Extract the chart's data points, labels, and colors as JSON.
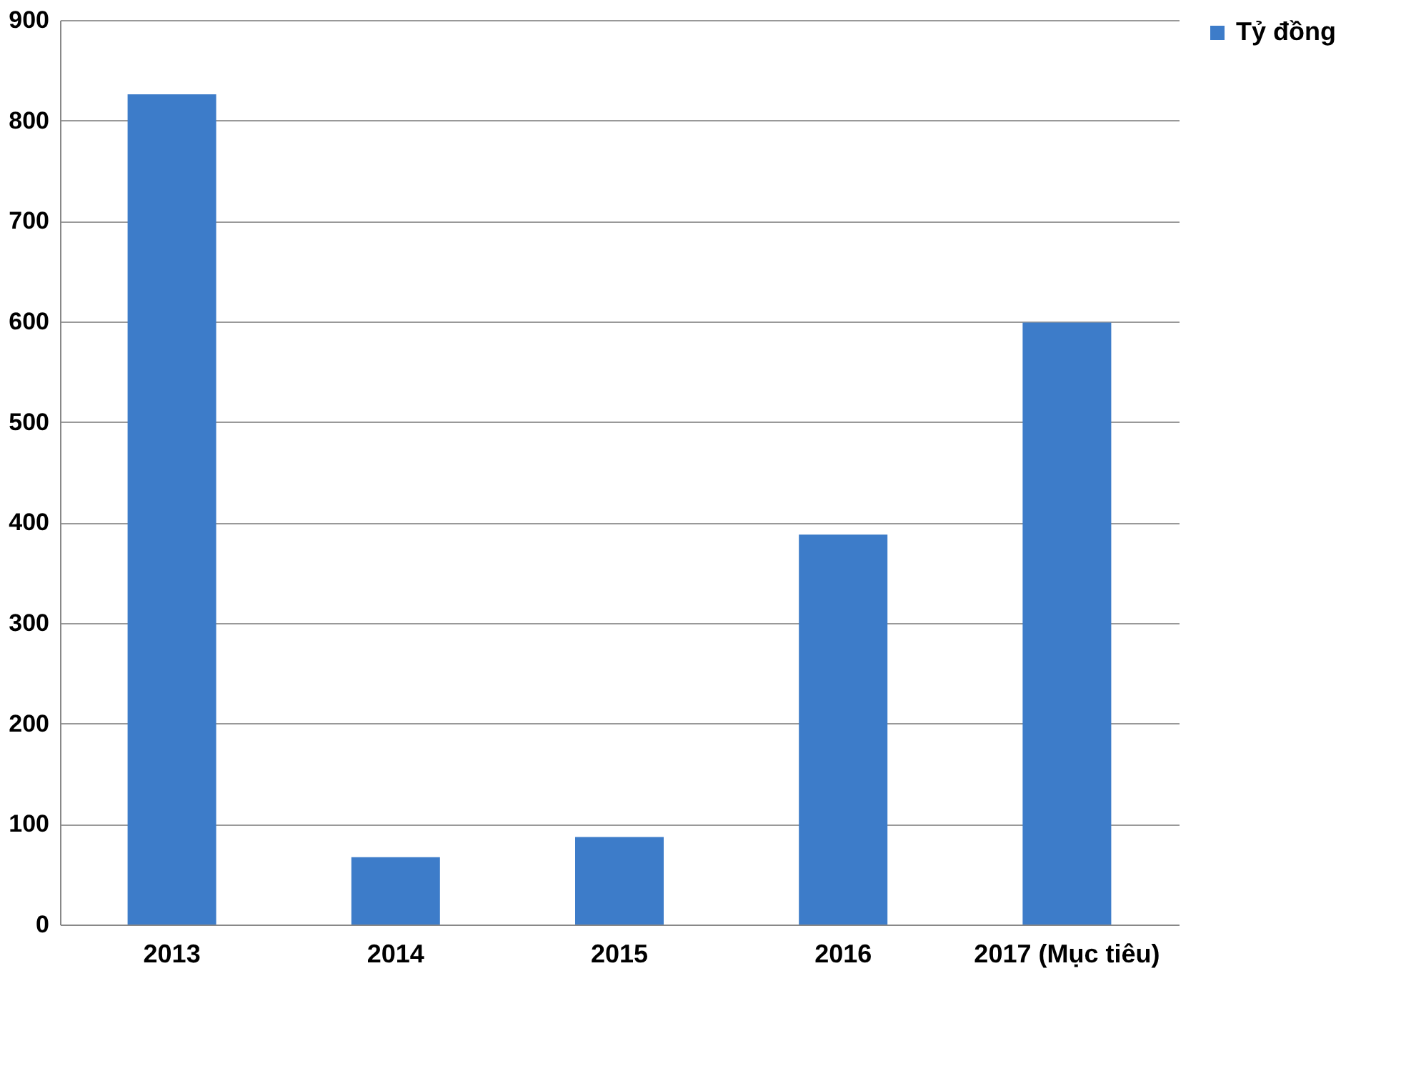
{
  "chart_data": {
    "type": "bar",
    "categories": [
      "2013",
      "2014",
      "2015",
      "2016",
      "2017 (Mục tiêu)"
    ],
    "series": [
      {
        "name": "Tỷ đồng",
        "color": "#3d7cc9",
        "values": [
          826,
          67,
          87,
          388,
          599
        ]
      }
    ],
    "ylim": [
      0,
      900
    ],
    "yticks": [
      0,
      100,
      200,
      300,
      400,
      500,
      600,
      700,
      800,
      900
    ],
    "grid": "y",
    "legend": "right"
  }
}
